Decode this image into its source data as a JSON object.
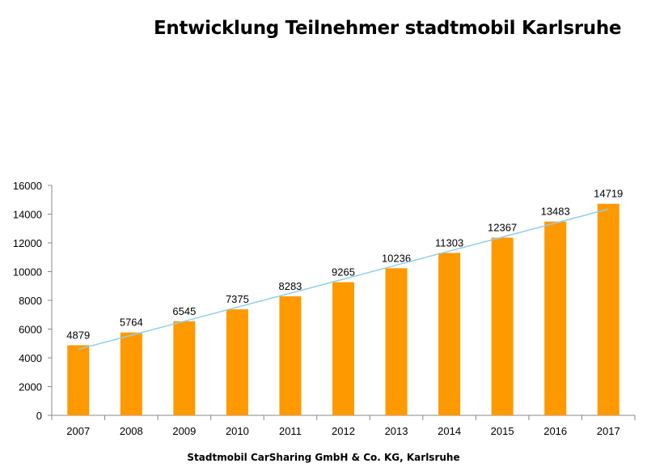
{
  "chart_data": {
    "type": "bar",
    "title": "Entwicklung Teilnehmer stadtmobil Karlsruhe",
    "footer": "Stadtmobil CarSharing GmbH & Co. KG, Karlsruhe",
    "categories": [
      "2007",
      "2008",
      "2009",
      "2010",
      "2011",
      "2012",
      "2013",
      "2014",
      "2015",
      "2016",
      "2017"
    ],
    "values": [
      4879,
      5764,
      6545,
      7375,
      8283,
      9265,
      10236,
      11303,
      12367,
      13483,
      14719
    ],
    "data_labels": [
      "4879",
      "5764",
      "6545",
      "7375",
      "8283",
      "9265",
      "10236",
      "11303",
      "12367",
      "13483",
      "14719"
    ],
    "ylim": [
      0,
      16000
    ],
    "yticks": [
      0,
      2000,
      4000,
      6000,
      8000,
      10000,
      12000,
      14000,
      16000
    ],
    "ytick_labels": [
      "0",
      "2000",
      "4000",
      "6000",
      "8000",
      "10000",
      "12000",
      "14000",
      "16000"
    ],
    "xlabel": "",
    "ylabel": "",
    "grid": false,
    "trendline": true,
    "colors": {
      "bar": "#FF9900",
      "trendline": "#8FD0EA",
      "axis": "#888888"
    }
  }
}
